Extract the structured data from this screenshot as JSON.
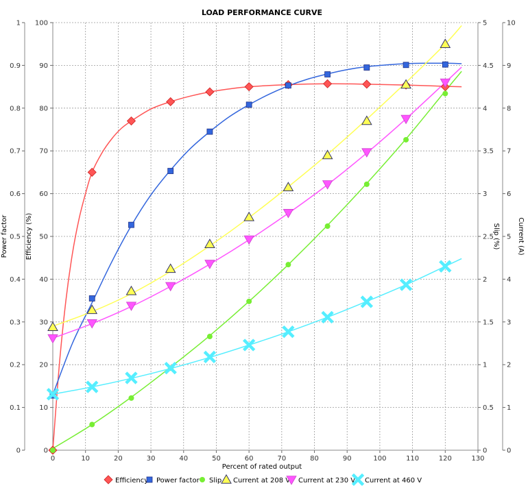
{
  "chart_data": {
    "type": "line",
    "title": "LOAD PERFORMANCE CURVE",
    "xlabel": "Percent of rated output",
    "xlim": [
      0,
      130
    ],
    "x_ticks": [
      0,
      10,
      20,
      30,
      40,
      50,
      60,
      70,
      80,
      90,
      100,
      110,
      120,
      130
    ],
    "grid": true,
    "legend_position": "bottom",
    "axes": [
      {
        "id": "pf",
        "label": "Power factor",
        "side": "left-outer",
        "min": 0,
        "max": 1,
        "ticks": [
          "0",
          "0.1",
          "0.2",
          "0.3",
          "0.4",
          "0.5",
          "0.6",
          "0.7",
          "0.8",
          "0.9",
          "1"
        ]
      },
      {
        "id": "eff",
        "label": "Efficiency (%)",
        "side": "left-inner",
        "min": 0,
        "max": 100,
        "ticks": [
          "0",
          "10",
          "20",
          "30",
          "40",
          "50",
          "60",
          "70",
          "80",
          "90",
          "100"
        ]
      },
      {
        "id": "slip",
        "label": "Slip (%)",
        "side": "right-inner",
        "min": 0,
        "max": 5,
        "ticks": [
          "0",
          "0.5",
          "1",
          "1.5",
          "2",
          "2.5",
          "3",
          "3.5",
          "4",
          "4.5",
          "5"
        ]
      },
      {
        "id": "cur",
        "label": "Current (A)",
        "side": "right-outer",
        "min": 0,
        "max": 10,
        "ticks": [
          "0",
          "1",
          "2",
          "3",
          "4",
          "5",
          "6",
          "7",
          "8",
          "9",
          "10"
        ]
      }
    ],
    "series": [
      {
        "name": "Efficiency",
        "axis": "eff",
        "color": "#ff5555",
        "marker": "diamond",
        "points": [
          [
            0,
            0
          ],
          [
            12,
            65
          ],
          [
            24,
            77
          ],
          [
            36,
            81.5
          ],
          [
            48,
            83.8
          ],
          [
            60,
            85
          ],
          [
            72,
            85.5
          ],
          [
            84,
            85.7
          ],
          [
            96,
            85.6
          ],
          [
            108,
            85.4
          ],
          [
            120,
            85
          ]
        ],
        "curve": [
          [
            0,
            0
          ],
          [
            2,
            20
          ],
          [
            4,
            35
          ],
          [
            6,
            46
          ],
          [
            8,
            54
          ],
          [
            10,
            60
          ],
          [
            12,
            65
          ],
          [
            15,
            69.5
          ],
          [
            18,
            72.8
          ],
          [
            21,
            75.3
          ],
          [
            24,
            77
          ],
          [
            30,
            79.8
          ],
          [
            36,
            81.5
          ],
          [
            42,
            82.8
          ],
          [
            48,
            83.8
          ],
          [
            54,
            84.5
          ],
          [
            60,
            85
          ],
          [
            72,
            85.5
          ],
          [
            84,
            85.7
          ],
          [
            96,
            85.6
          ],
          [
            108,
            85.4
          ],
          [
            120,
            85.1
          ],
          [
            125,
            85
          ]
        ]
      },
      {
        "name": "Power factor",
        "axis": "pf",
        "color": "#3366dd",
        "marker": "square",
        "points": [
          [
            0,
            0.128
          ],
          [
            12,
            0.355
          ],
          [
            24,
            0.527
          ],
          [
            36,
            0.653
          ],
          [
            48,
            0.745
          ],
          [
            60,
            0.808
          ],
          [
            72,
            0.853
          ],
          [
            84,
            0.879
          ],
          [
            96,
            0.895
          ],
          [
            108,
            0.901
          ],
          [
            120,
            0.902
          ]
        ],
        "curve": [
          [
            0,
            0.13
          ],
          [
            6,
            0.25
          ],
          [
            12,
            0.345
          ],
          [
            18,
            0.44
          ],
          [
            24,
            0.525
          ],
          [
            30,
            0.597
          ],
          [
            36,
            0.655
          ],
          [
            42,
            0.705
          ],
          [
            48,
            0.745
          ],
          [
            54,
            0.78
          ],
          [
            60,
            0.808
          ],
          [
            66,
            0.832
          ],
          [
            72,
            0.852
          ],
          [
            78,
            0.868
          ],
          [
            84,
            0.88
          ],
          [
            90,
            0.89
          ],
          [
            96,
            0.897
          ],
          [
            102,
            0.901
          ],
          [
            108,
            0.904
          ],
          [
            114,
            0.905
          ],
          [
            120,
            0.905
          ],
          [
            125,
            0.904
          ]
        ]
      },
      {
        "name": "Slip",
        "axis": "slip",
        "color": "#77ee33",
        "marker": "circle",
        "points": [
          [
            0,
            0
          ],
          [
            12,
            0.3
          ],
          [
            24,
            0.61
          ],
          [
            36,
            0.96
          ],
          [
            48,
            1.33
          ],
          [
            60,
            1.74
          ],
          [
            72,
            2.17
          ],
          [
            84,
            2.62
          ],
          [
            96,
            3.11
          ],
          [
            108,
            3.63
          ],
          [
            120,
            4.17
          ]
        ],
        "curve": [
          [
            0,
            0.02
          ],
          [
            12,
            0.3
          ],
          [
            24,
            0.62
          ],
          [
            36,
            0.97
          ],
          [
            48,
            1.34
          ],
          [
            60,
            1.74
          ],
          [
            72,
            2.17
          ],
          [
            84,
            2.63
          ],
          [
            96,
            3.12
          ],
          [
            108,
            3.64
          ],
          [
            120,
            4.2
          ],
          [
            125,
            4.43
          ]
        ]
      },
      {
        "name": "Current at 208 V",
        "axis": "cur",
        "color": "#ffff55",
        "marker": "triangle-up",
        "points": [
          [
            0,
            2.88
          ],
          [
            12,
            3.28
          ],
          [
            24,
            3.72
          ],
          [
            36,
            4.24
          ],
          [
            48,
            4.82
          ],
          [
            60,
            5.45
          ],
          [
            72,
            6.15
          ],
          [
            84,
            6.9
          ],
          [
            96,
            7.7
          ],
          [
            108,
            8.55
          ],
          [
            120,
            9.5
          ]
        ],
        "curve": [
          [
            0,
            2.9
          ],
          [
            12,
            3.24
          ],
          [
            24,
            3.66
          ],
          [
            36,
            4.18
          ],
          [
            48,
            4.78
          ],
          [
            60,
            5.44
          ],
          [
            72,
            6.16
          ],
          [
            84,
            6.92
          ],
          [
            96,
            7.74
          ],
          [
            108,
            8.6
          ],
          [
            120,
            9.5
          ],
          [
            125,
            9.93
          ]
        ]
      },
      {
        "name": "Current at 230 V",
        "axis": "cur",
        "color": "#ff55ff",
        "marker": "triangle-down",
        "points": [
          [
            0,
            2.62
          ],
          [
            12,
            2.97
          ],
          [
            24,
            3.38
          ],
          [
            36,
            3.84
          ],
          [
            48,
            4.36
          ],
          [
            60,
            4.93
          ],
          [
            72,
            5.55
          ],
          [
            84,
            6.22
          ],
          [
            96,
            6.97
          ],
          [
            108,
            7.75
          ],
          [
            120,
            8.6
          ]
        ],
        "curve": [
          [
            0,
            2.62
          ],
          [
            12,
            2.96
          ],
          [
            24,
            3.36
          ],
          [
            36,
            3.83
          ],
          [
            48,
            4.35
          ],
          [
            60,
            4.92
          ],
          [
            72,
            5.54
          ],
          [
            84,
            6.21
          ],
          [
            96,
            6.95
          ],
          [
            108,
            7.75
          ],
          [
            120,
            8.6
          ],
          [
            125,
            8.96
          ]
        ]
      },
      {
        "name": "Current at 460 V",
        "axis": "cur",
        "color": "#55eeff",
        "marker": "x",
        "points": [
          [
            0,
            1.31
          ],
          [
            12,
            1.48
          ],
          [
            24,
            1.69
          ],
          [
            36,
            1.92
          ],
          [
            48,
            2.18
          ],
          [
            60,
            2.46
          ],
          [
            72,
            2.77
          ],
          [
            84,
            3.11
          ],
          [
            96,
            3.47
          ],
          [
            108,
            3.87
          ],
          [
            120,
            4.3
          ]
        ],
        "curve": [
          [
            0,
            1.31
          ],
          [
            12,
            1.48
          ],
          [
            24,
            1.68
          ],
          [
            36,
            1.91
          ],
          [
            48,
            2.17
          ],
          [
            60,
            2.46
          ],
          [
            72,
            2.77
          ],
          [
            84,
            3.11
          ],
          [
            96,
            3.48
          ],
          [
            108,
            3.87
          ],
          [
            120,
            4.3
          ],
          [
            125,
            4.48
          ]
        ]
      }
    ]
  }
}
